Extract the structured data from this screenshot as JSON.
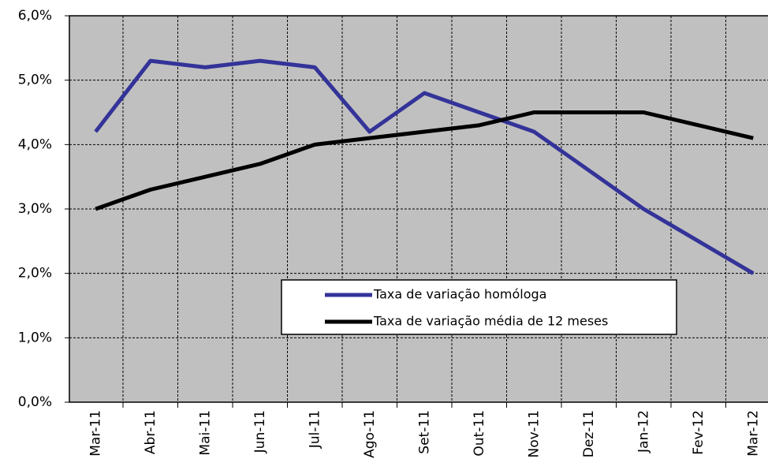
{
  "chart_data": {
    "type": "line",
    "categories": [
      "Mar-11",
      "Abr-11",
      "Mai-11",
      "Jun-11",
      "Jul-11",
      "Ago-11",
      "Set-11",
      "Out-11",
      "Nov-11",
      "Dez-11",
      "Jan-12",
      "Fev-12",
      "Mar-12"
    ],
    "series": [
      {
        "name": "Taxa de variação homóloga",
        "color": "#333399",
        "values": [
          4.2,
          5.3,
          5.2,
          5.3,
          5.2,
          4.2,
          4.8,
          4.5,
          4.2,
          3.6,
          3.0,
          2.5,
          2.0
        ]
      },
      {
        "name": "Taxa de variação média de 12 meses",
        "color": "#000000",
        "values": [
          3.0,
          3.3,
          3.5,
          3.7,
          4.0,
          4.1,
          4.2,
          4.3,
          4.5,
          4.5,
          4.5,
          4.3,
          4.1
        ]
      }
    ],
    "ylim": [
      0,
      6
    ],
    "yticks": [
      {
        "value": 0,
        "label": "0,0%"
      },
      {
        "value": 1,
        "label": "1,0%"
      },
      {
        "value": 2,
        "label": "2,0%"
      },
      {
        "value": 3,
        "label": "3,0%"
      },
      {
        "value": 4,
        "label": "4,0%"
      },
      {
        "value": 5,
        "label": "5,0%"
      },
      {
        "value": 6,
        "label": "6,0%"
      }
    ],
    "grid": true,
    "background": "#c0c0c0"
  }
}
